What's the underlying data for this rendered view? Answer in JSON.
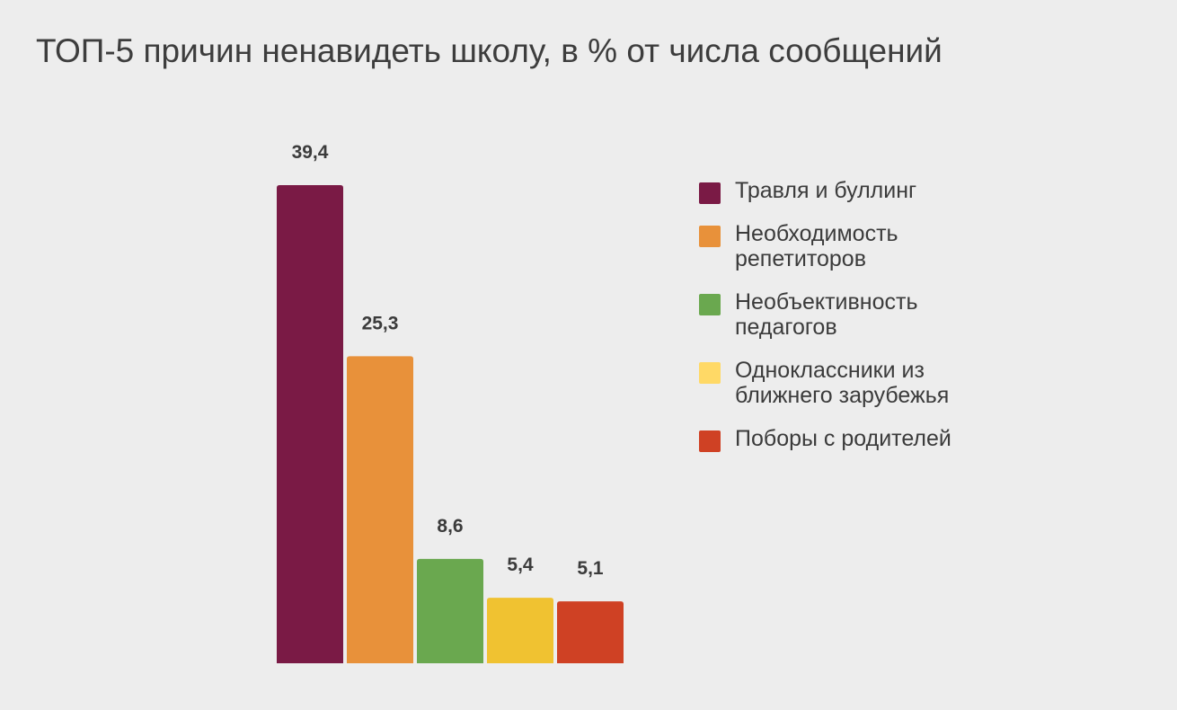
{
  "chart_data": {
    "type": "bar",
    "title": "ТОП-5 причин ненавидеть школу, в % от числа сообщений",
    "categories": [
      "Травля и буллинг",
      "Необходимость репетиторов",
      "Необъективность педагогов",
      "Одноклассники из ближнего зарубежья",
      "Поборы с родителей"
    ],
    "values": [
      39.4,
      25.3,
      8.6,
      5.4,
      5.1
    ],
    "value_labels": [
      "39,4",
      "25,3",
      "8,6",
      "5,4",
      "5,1"
    ],
    "colors": [
      "#7a1a45",
      "#e8913a",
      "#6aa84f",
      "#f0c231",
      "#cf4124"
    ],
    "legend_colors": [
      "#7a1a45",
      "#e8913a",
      "#6aa84f",
      "#ffd966",
      "#cf4124"
    ],
    "ylim": [
      0,
      39.4
    ],
    "legend_position": "right",
    "grid": false,
    "xlabel": "",
    "ylabel": ""
  }
}
